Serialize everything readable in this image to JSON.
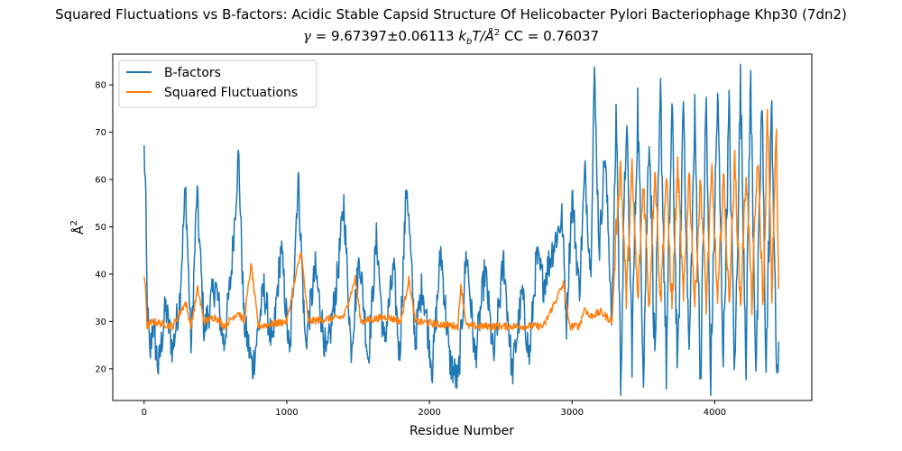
{
  "title_line1": "Squared Fluctuations vs B-factors: Acidic Stable Capsid Structure Of Helicobacter Pylori Bacteriophage Khp30 (7dn2)",
  "title_line2": {
    "gamma_symbol": "γ",
    "equals": " = 9.67397±0.06113 ",
    "units_k": "k",
    "units_b": "b",
    "units_rest": "T/Å",
    "units_sup": "2",
    "cc": "  CC = 0.76037"
  },
  "chart_data": {
    "type": "line",
    "xlabel": "Residue Number",
    "ylabel": "Å",
    "ylabel_sup": "2",
    "xlim": [
      -220,
      4680
    ],
    "ylim": [
      13.3,
      86.5
    ],
    "xticks": [
      0,
      1000,
      2000,
      3000,
      4000
    ],
    "yticks": [
      20,
      30,
      40,
      50,
      60,
      70,
      80
    ],
    "legend_position": "upper-left",
    "n_residues": 4450,
    "series": [
      {
        "name": "B-factors",
        "color": "#1f77b4",
        "keypoints": [
          [
            0,
            66
          ],
          [
            10,
            58
          ],
          [
            20,
            35
          ],
          [
            40,
            22
          ],
          [
            60,
            30
          ],
          [
            100,
            20
          ],
          [
            150,
            33
          ],
          [
            200,
            24
          ],
          [
            250,
            35
          ],
          [
            290,
            58.5
          ],
          [
            330,
            24
          ],
          [
            370,
            57.5
          ],
          [
            420,
            28
          ],
          [
            500,
            38
          ],
          [
            560,
            25
          ],
          [
            610,
            40
          ],
          [
            662,
            65.5
          ],
          [
            700,
            30
          ],
          [
            760,
            20
          ],
          [
            840,
            37
          ],
          [
            900,
            24
          ],
          [
            960,
            46
          ],
          [
            1020,
            22
          ],
          [
            1080,
            60.5
          ],
          [
            1130,
            25
          ],
          [
            1200,
            41
          ],
          [
            1280,
            22
          ],
          [
            1350,
            38
          ],
          [
            1400,
            55
          ],
          [
            1450,
            24
          ],
          [
            1510,
            44
          ],
          [
            1570,
            22
          ],
          [
            1630,
            48
          ],
          [
            1680,
            25
          ],
          [
            1750,
            41
          ],
          [
            1790,
            22
          ],
          [
            1840,
            60
          ],
          [
            1900,
            26
          ],
          [
            1950,
            38
          ],
          [
            2020,
            20
          ],
          [
            2080,
            45
          ],
          [
            2140,
            22
          ],
          [
            2200,
            17
          ],
          [
            2260,
            45
          ],
          [
            2320,
            22
          ],
          [
            2390,
            41
          ],
          [
            2450,
            22
          ],
          [
            2520,
            43
          ],
          [
            2580,
            19
          ],
          [
            2650,
            36
          ],
          [
            2700,
            22
          ],
          [
            2750,
            43.5
          ],
          [
            2800,
            38
          ],
          [
            2860,
            45
          ],
          [
            2930,
            52
          ],
          [
            2960,
            30
          ],
          [
            3000,
            57
          ],
          [
            3050,
            36
          ],
          [
            3090,
            62
          ],
          [
            3130,
            40
          ],
          [
            3155,
            83
          ],
          [
            3190,
            45
          ],
          [
            3230,
            66
          ],
          [
            3280,
            30
          ],
          [
            3310,
            76
          ],
          [
            3340,
            18
          ],
          [
            3380,
            73
          ],
          [
            3420,
            24
          ],
          [
            3460,
            76
          ],
          [
            3500,
            20
          ],
          [
            3540,
            72
          ],
          [
            3580,
            22
          ],
          [
            3620,
            78
          ],
          [
            3660,
            20
          ],
          [
            3700,
            75
          ],
          [
            3740,
            18
          ],
          [
            3780,
            78
          ],
          [
            3820,
            22
          ],
          [
            3860,
            73
          ],
          [
            3900,
            18
          ],
          [
            3940,
            77
          ],
          [
            3970,
            17
          ],
          [
            4020,
            78
          ],
          [
            4060,
            22
          ],
          [
            4100,
            75
          ],
          [
            4140,
            18
          ],
          [
            4180,
            80
          ],
          [
            4220,
            22
          ],
          [
            4250,
            82
          ],
          [
            4290,
            18
          ],
          [
            4330,
            78
          ],
          [
            4360,
            20
          ],
          [
            4400,
            76
          ],
          [
            4430,
            22
          ],
          [
            4450,
            20
          ]
        ]
      },
      {
        "name": "Squared Fluctuations",
        "color": "#ff7f0e",
        "keypoints": [
          [
            0,
            39
          ],
          [
            10,
            38
          ],
          [
            20,
            29
          ],
          [
            60,
            30
          ],
          [
            200,
            29
          ],
          [
            290,
            34
          ],
          [
            330,
            29
          ],
          [
            375,
            37
          ],
          [
            420,
            30
          ],
          [
            500,
            31
          ],
          [
            560,
            29
          ],
          [
            660,
            32
          ],
          [
            700,
            30
          ],
          [
            750,
            42
          ],
          [
            800,
            29
          ],
          [
            1000,
            30
          ],
          [
            1100,
            45
          ],
          [
            1150,
            30
          ],
          [
            1400,
            31
          ],
          [
            1480,
            39
          ],
          [
            1520,
            30
          ],
          [
            1700,
            31
          ],
          [
            1800,
            30
          ],
          [
            1855,
            39
          ],
          [
            1900,
            30
          ],
          [
            2200,
            29
          ],
          [
            2220,
            38
          ],
          [
            2260,
            29
          ],
          [
            2500,
            29
          ],
          [
            2800,
            29
          ],
          [
            2940,
            38
          ],
          [
            2980,
            29
          ],
          [
            3050,
            29
          ],
          [
            3090,
            33
          ],
          [
            3120,
            31
          ],
          [
            3200,
            32
          ],
          [
            3280,
            30
          ],
          [
            3310,
            50
          ],
          [
            3340,
            63
          ],
          [
            3380,
            35
          ],
          [
            3420,
            62
          ],
          [
            3460,
            34
          ],
          [
            3500,
            60
          ],
          [
            3540,
            33
          ],
          [
            3580,
            63
          ],
          [
            3620,
            34
          ],
          [
            3660,
            61
          ],
          [
            3700,
            33
          ],
          [
            3740,
            63
          ],
          [
            3780,
            34
          ],
          [
            3820,
            62
          ],
          [
            3860,
            33
          ],
          [
            3900,
            60
          ],
          [
            3940,
            34
          ],
          [
            3980,
            62
          ],
          [
            4020,
            33
          ],
          [
            4060,
            61
          ],
          [
            4100,
            34
          ],
          [
            4140,
            64
          ],
          [
            4180,
            33
          ],
          [
            4220,
            62
          ],
          [
            4260,
            34
          ],
          [
            4300,
            65
          ],
          [
            4340,
            33
          ],
          [
            4370,
            75
          ],
          [
            4400,
            35
          ],
          [
            4430,
            72
          ],
          [
            4450,
            32
          ]
        ]
      }
    ]
  }
}
